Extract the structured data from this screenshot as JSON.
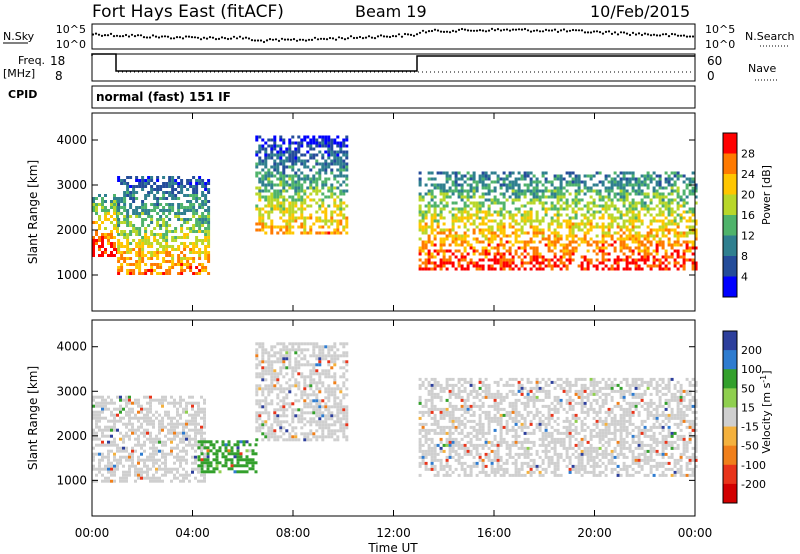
{
  "header": {
    "title": "Fort Hays East (fitACF)",
    "beam": "Beam 19",
    "date": "10/Feb/2015"
  },
  "noise_panel": {
    "left_label": "N.Sky",
    "left_ticks": [
      "10^5",
      "10^0"
    ],
    "right_ticks": [
      "10^5",
      "10^0"
    ],
    "right_label": "N.Search"
  },
  "freq_panel": {
    "left_label_1": "Freq.",
    "left_label_2": "[MHz]",
    "left_ticks": [
      "18",
      "8"
    ],
    "right_ticks": [
      "60",
      "0"
    ],
    "right_label": "Nave"
  },
  "cpid": {
    "label": "CPID",
    "value": "normal (fast) 151 IF"
  },
  "chart_data": [
    {
      "type": "heatmap",
      "panel": "power",
      "ylabel": "Slant Range [km]",
      "yticks": [
        "4000",
        "3000",
        "2000",
        "1000"
      ],
      "ylim": [
        200,
        4600
      ],
      "xlim": [
        0,
        24
      ],
      "colorbar_label": "Power [dB]",
      "colorbar_ticks": [
        "28",
        "24",
        "20",
        "16",
        "12",
        "8",
        "4"
      ],
      "colorbar_colors": [
        "#ff0000",
        "#ff7a00",
        "#ffc600",
        "#b8d72a",
        "#4fb36b",
        "#2f7f8f",
        "#244c9a",
        "#0000ff"
      ],
      "regions": [
        {
          "t0": 0.0,
          "t1": 1.0,
          "r0": 1400,
          "r1": 2800,
          "level": 20
        },
        {
          "t0": 1.0,
          "t1": 4.7,
          "r0": 1000,
          "r1": 3200,
          "level": 14
        },
        {
          "t0": 6.5,
          "t1": 10.2,
          "r0": 1900,
          "r1": 4100,
          "level": 12
        },
        {
          "t0": 13.0,
          "t1": 24.0,
          "r0": 1100,
          "r1": 3300,
          "level": 18
        }
      ]
    },
    {
      "type": "heatmap",
      "panel": "velocity",
      "ylabel": "Slant Range [km]",
      "yticks": [
        "4000",
        "3000",
        "2000",
        "1000"
      ],
      "ylim": [
        200,
        4600
      ],
      "xlim": [
        0,
        24
      ],
      "xlabel": "Time UT",
      "xticks": [
        "00:00",
        "04:00",
        "08:00",
        "12:00",
        "16:00",
        "20:00",
        "00:00"
      ],
      "colorbar_label": "Velocity [m s^-1]",
      "colorbar_ticks": [
        "200",
        "100",
        "50",
        "15",
        "-15",
        "-50",
        "-100",
        "-200"
      ],
      "colorbar_colors": [
        "#2d3f9c",
        "#2e7cd0",
        "#33a02c",
        "#8fcf4f",
        "#cfcfcf",
        "#f4b13d",
        "#f07f1a",
        "#e9341a",
        "#d20000"
      ],
      "regions": [
        {
          "t0": 0.0,
          "t1": 4.5,
          "r0": 1000,
          "r1": 2900,
          "level": 0
        },
        {
          "t0": 4.2,
          "t1": 6.5,
          "r0": 1200,
          "r1": 1900,
          "level": 50
        },
        {
          "t0": 6.5,
          "t1": 10.2,
          "r0": 1900,
          "r1": 4100,
          "level": 0
        },
        {
          "t0": 13.0,
          "t1": 24.0,
          "r0": 1100,
          "r1": 3300,
          "level": 0
        }
      ]
    }
  ]
}
